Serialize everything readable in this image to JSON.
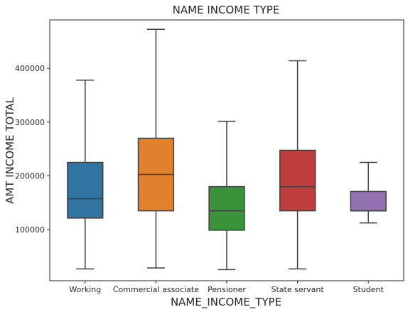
{
  "chart_data": {
    "type": "box",
    "title": "NAME INCOME TYPE",
    "xlabel": "NAME_INCOME_TYPE",
    "ylabel": "AMT INCOME TOTAL",
    "ylim": [
      5000,
      490000
    ],
    "yticks": [
      100000,
      200000,
      300000,
      400000
    ],
    "ytick_labels": [
      "100000",
      "200000",
      "300000",
      "400000"
    ],
    "grid": false,
    "categories": [
      "Working",
      "Commercial associate",
      "Pensioner",
      "State servant",
      "Student"
    ],
    "boxes": [
      {
        "category": "Working",
        "whisker_low": 27000,
        "q1": 121500,
        "median": 157500,
        "q3": 225000,
        "whisker_high": 378000,
        "color": "#3274a1"
      },
      {
        "category": "Commercial associate",
        "whisker_low": 28800,
        "q1": 135000,
        "median": 202500,
        "q3": 270000,
        "whisker_high": 472500,
        "color": "#e1812c"
      },
      {
        "category": "Pensioner",
        "whisker_low": 25650,
        "q1": 99000,
        "median": 135000,
        "q3": 180000,
        "whisker_high": 301500,
        "color": "#3a923a"
      },
      {
        "category": "State servant",
        "whisker_low": 27000,
        "q1": 135000,
        "median": 180000,
        "q3": 247500,
        "whisker_high": 414000,
        "color": "#c03d3e"
      },
      {
        "category": "Student",
        "whisker_low": 112500,
        "q1": 135000,
        "median": 135000,
        "q3": 171000,
        "whisker_high": 225000,
        "color": "#9372b2"
      }
    ]
  }
}
